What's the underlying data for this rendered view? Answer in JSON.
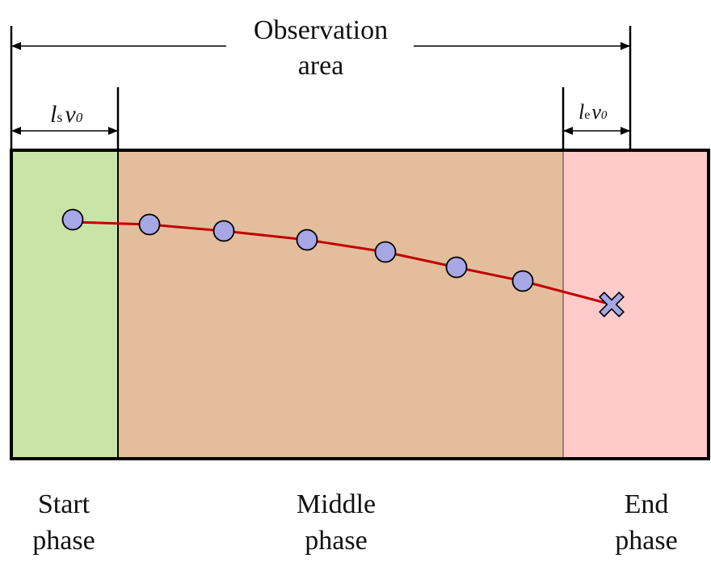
{
  "header": {
    "observation_line1": "Observation",
    "observation_line2": "area"
  },
  "dimensions": {
    "start_l": "l",
    "start_sub": "s",
    "start_v": "v",
    "start_v_sub": "0",
    "end_l": "l",
    "end_sub": "e",
    "end_v": "v",
    "end_v_sub": "0"
  },
  "phases": [
    {
      "line1": "Start",
      "line2": "phase",
      "color": "#c9e4a6"
    },
    {
      "line1": "Middle",
      "line2": "phase",
      "color": "#e3bd9c"
    },
    {
      "line1": "End",
      "line2": "phase",
      "color": "#ffcaca"
    }
  ],
  "colors": {
    "trajectory": "#c00000",
    "marker_fill": "#a7a7e6",
    "frame": "#000000"
  },
  "icons": {
    "end_marker": "x-marker-icon",
    "point_marker": "circle-marker-icon"
  }
}
